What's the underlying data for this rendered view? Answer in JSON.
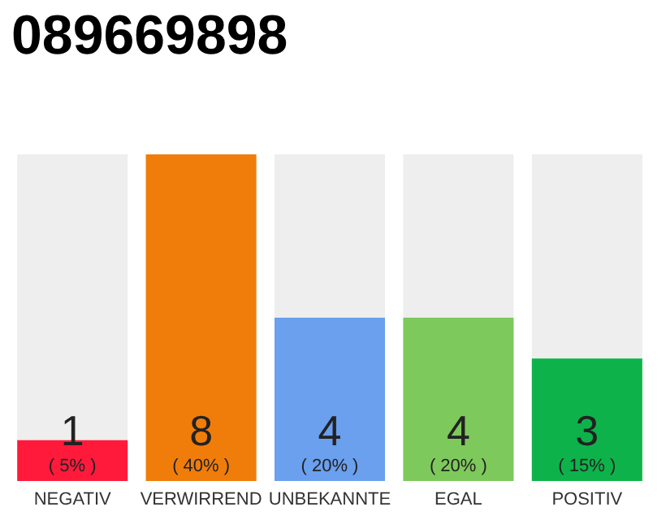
{
  "chart_data": {
    "type": "bar",
    "title": "089669898",
    "categories": [
      "NEGATIV",
      "VERWIRREND",
      "UNBEKANNTE",
      "EGAL",
      "POSITIV"
    ],
    "values": [
      1,
      8,
      4,
      4,
      3
    ],
    "colors": [
      "#ff1a3c",
      "#f07d0a",
      "#6aa0ee",
      "#7ec95c",
      "#0db34a"
    ],
    "value_labels": [
      "1\n( 5% )",
      "8\n( 40% )",
      "4\n( 20% )",
      "4\n( 20% )",
      "3\n( 15% )"
    ]
  }
}
